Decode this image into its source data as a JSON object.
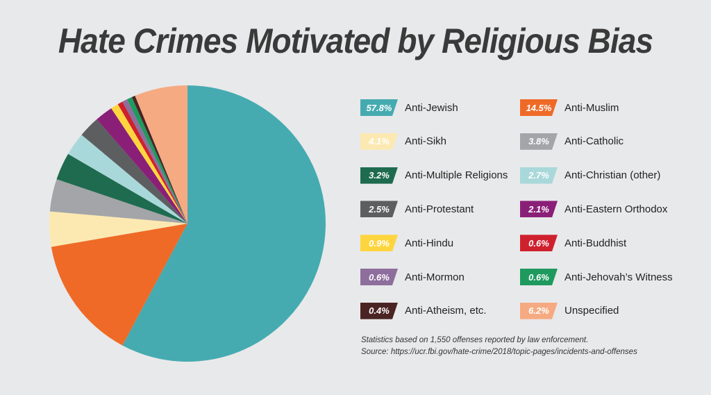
{
  "title": "Hate Crimes Motivated by Religious Bias",
  "chart_data": {
    "type": "pie",
    "title": "Hate Crimes Motivated by Religious Bias",
    "slices": [
      {
        "label": "Anti-Jewish",
        "value": 57.8,
        "display": "57.8%",
        "color": "#45abb1"
      },
      {
        "label": "Anti-Muslim",
        "value": 14.5,
        "display": "14.5%",
        "color": "#ef6a27"
      },
      {
        "label": "Anti-Sikh",
        "value": 4.1,
        "display": "4.1%",
        "color": "#fce9b2"
      },
      {
        "label": "Anti-Catholic",
        "value": 3.8,
        "display": "3.8%",
        "color": "#a3a5a8"
      },
      {
        "label": "Anti-Multiple Religions",
        "value": 3.2,
        "display": "3.2%",
        "color": "#1e6b4f"
      },
      {
        "label": "Anti-Christian (other)",
        "value": 2.7,
        "display": "2.7%",
        "color": "#a9d8da"
      },
      {
        "label": "Anti-Protestant",
        "value": 2.5,
        "display": "2.5%",
        "color": "#5d5e60"
      },
      {
        "label": "Anti-Eastern Orthodox",
        "value": 2.1,
        "display": "2.1%",
        "color": "#8a1f78"
      },
      {
        "label": "Anti-Hindu",
        "value": 0.9,
        "display": "0.9%",
        "color": "#ffd53f"
      },
      {
        "label": "Anti-Buddhist",
        "value": 0.6,
        "display": "0.6%",
        "color": "#cf202e"
      },
      {
        "label": "Anti-Mormon",
        "value": 0.6,
        "display": "0.6%",
        "color": "#8e6e9c"
      },
      {
        "label": "Anti-Jehovah’s Witness",
        "value": 0.6,
        "display": "0.6%",
        "color": "#1f9a5f"
      },
      {
        "label": "Anti-Atheism, etc.",
        "value": 0.4,
        "display": "0.4%",
        "color": "#4a2423"
      },
      {
        "label": "Unspecified",
        "value": 6.2,
        "display": "6.2%",
        "color": "#f6aa82"
      }
    ],
    "legend_placement": "right"
  },
  "footnote": {
    "line1": "Statistics based on 1,550 offenses reported by law enforcement.",
    "line2": "Source: https://ucr.fbi.gov/hate-crime/2018/topic-pages/incidents-and-offenses"
  }
}
